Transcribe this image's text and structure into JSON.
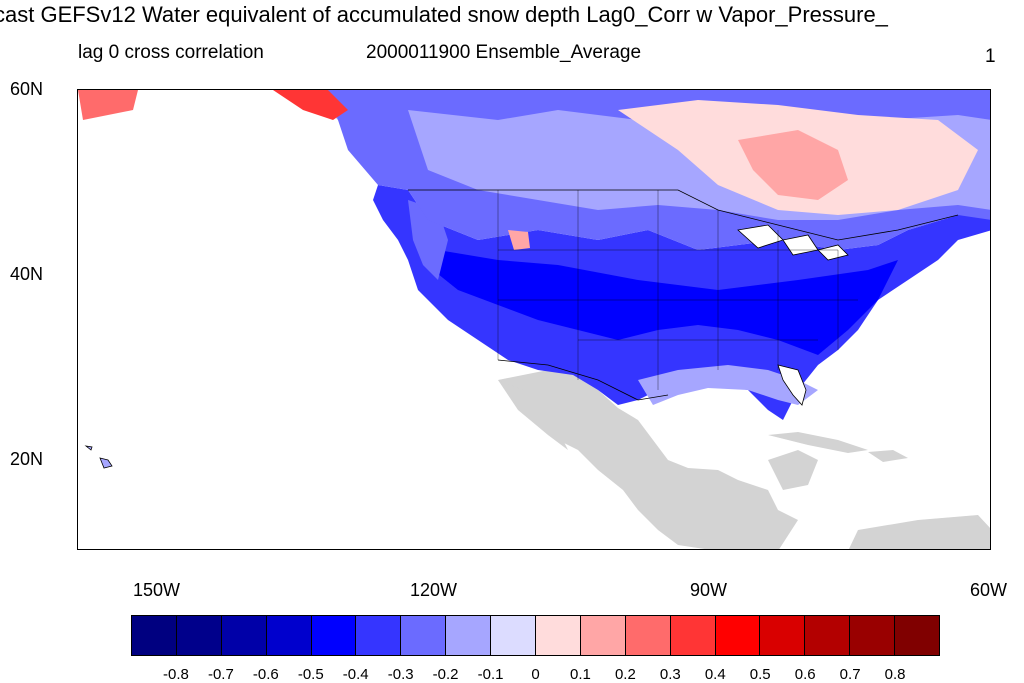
{
  "title": "cast GEFSv12 Water equivalent of accumulated snow depth Lag0_Corr w Vapor_Pressure_",
  "subtitle_left": "lag 0 cross correlation",
  "subtitle_center": "2000011900 Ensemble_Average",
  "subtitle_right": "1",
  "map": {
    "lat_ticks": [
      "60N",
      "40N",
      "20N"
    ],
    "lon_ticks": [
      "150W",
      "120W",
      "90W",
      "60W"
    ],
    "missing_color": "#d3d3d3",
    "coast_color": "#000000"
  },
  "colorbar": {
    "colors": [
      "#000080",
      "#00008b",
      "#0000a8",
      "#0000cd",
      "#0000ff",
      "#3535ff",
      "#6b6bff",
      "#a6a6ff",
      "#dcdcff",
      "#ffdcdc",
      "#ffa6a6",
      "#ff6b6b",
      "#ff3535",
      "#ff0000",
      "#d90000",
      "#b30000",
      "#990000",
      "#800000"
    ],
    "labels": [
      "-0.8",
      "-0.7",
      "-0.6",
      "-0.5",
      "-0.4",
      "-0.3",
      "-0.2",
      "-0.1",
      "0",
      "0.1",
      "0.2",
      "0.3",
      "0.4",
      "0.5",
      "0.6",
      "0.7",
      "0.8"
    ]
  }
}
